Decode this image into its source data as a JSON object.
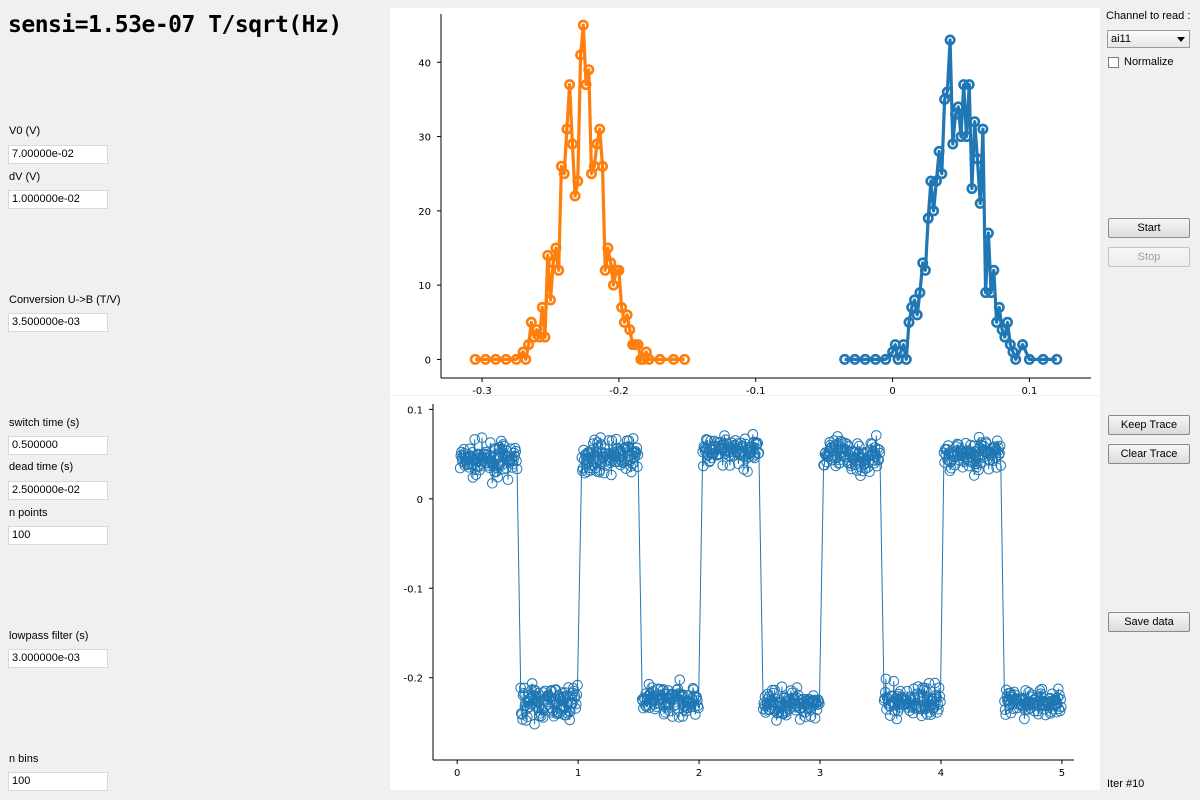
{
  "header": {
    "title": "sensi=1.53e-07 T/sqrt(Hz)"
  },
  "params": {
    "v0": {
      "label": "V0 (V)",
      "value": "7.00000e-02"
    },
    "dv": {
      "label": "dV (V)",
      "value": "1.000000e-02"
    },
    "conversion": {
      "label": "Conversion U->B (T/V)",
      "value": "3.500000e-03"
    },
    "switch_time": {
      "label": "switch time (s)",
      "value": "0.500000"
    },
    "dead_time": {
      "label": "dead time (s)",
      "value": "2.500000e-02"
    },
    "n_points": {
      "label": "n points",
      "value": "100"
    },
    "lowpass": {
      "label": "lowpass filter (s)",
      "value": "3.000000e-03"
    },
    "n_bins": {
      "label": "n bins",
      "value": "100"
    }
  },
  "controls": {
    "channel_label": "Channel to read :",
    "channel_value": "ai11",
    "normalize_label": "Normalize",
    "normalize_checked": false,
    "start_label": "Start",
    "stop_label": "Stop",
    "stop_enabled": false,
    "keep_trace_label": "Keep Trace",
    "clear_trace_label": "Clear Trace",
    "save_data_label": "Save data"
  },
  "status": {
    "iteration": "Iter #10"
  },
  "chart_data": [
    {
      "type": "line",
      "name": "histogram",
      "markers": "circle",
      "xlim": [
        -0.33,
        0.145
      ],
      "ylim": [
        -2.5,
        46.5
      ],
      "x_ticks": [
        -0.3,
        -0.2,
        -0.1,
        0,
        0.1
      ],
      "x_tick_labels": [
        "-0.3",
        "-0.2",
        "-0.1",
        "0",
        "0.1"
      ],
      "y_ticks": [
        0,
        10,
        20,
        30,
        40
      ],
      "y_tick_labels": [
        "0",
        "10",
        "20",
        "30",
        "40"
      ],
      "series": [
        {
          "color": "#ff7f0e",
          "x": [
            -0.305,
            -0.2975,
            -0.29,
            -0.2825,
            -0.275,
            -0.27,
            -0.268,
            -0.266,
            -0.264,
            -0.262,
            -0.26,
            -0.258,
            -0.256,
            -0.254,
            -0.252,
            -0.25,
            -0.248,
            -0.246,
            -0.244,
            -0.242,
            -0.24,
            -0.238,
            -0.236,
            -0.234,
            -0.232,
            -0.23,
            -0.228,
            -0.226,
            -0.224,
            -0.222,
            -0.22,
            -0.218,
            -0.216,
            -0.214,
            -0.212,
            -0.21,
            -0.208,
            -0.206,
            -0.204,
            -0.202,
            -0.2,
            -0.198,
            -0.196,
            -0.194,
            -0.192,
            -0.19,
            -0.188,
            -0.186,
            -0.184,
            -0.182,
            -0.18,
            -0.178,
            -0.17,
            -0.16,
            -0.152
          ],
          "y": [
            0,
            0,
            0,
            0,
            0,
            1,
            0,
            2,
            5,
            3,
            4,
            3,
            7,
            3,
            14,
            8,
            13,
            15,
            12,
            26,
            25,
            31,
            37,
            29,
            22,
            24,
            41,
            45,
            37,
            39,
            25,
            26,
            29,
            31,
            26,
            12,
            15,
            13,
            10,
            12,
            12,
            7,
            5,
            6,
            4,
            2,
            2,
            2,
            0,
            0,
            1,
            0,
            0,
            0,
            0
          ]
        },
        {
          "color": "#1f77b4",
          "x": [
            -0.035,
            -0.0275,
            -0.02,
            -0.0125,
            -0.005,
            0,
            0.002,
            0.004,
            0.006,
            0.008,
            0.01,
            0.012,
            0.014,
            0.016,
            0.018,
            0.02,
            0.022,
            0.024,
            0.026,
            0.028,
            0.03,
            0.032,
            0.034,
            0.036,
            0.038,
            0.04,
            0.042,
            0.044,
            0.046,
            0.048,
            0.05,
            0.052,
            0.054,
            0.056,
            0.058,
            0.06,
            0.062,
            0.064,
            0.066,
            0.068,
            0.07,
            0.072,
            0.074,
            0.076,
            0.078,
            0.08,
            0.082,
            0.084,
            0.086,
            0.088,
            0.09,
            0.095,
            0.1,
            0.11,
            0.12
          ],
          "y": [
            0,
            0,
            0,
            0,
            0,
            1,
            2,
            0,
            1,
            2,
            0,
            5,
            7,
            8,
            6,
            9,
            13,
            12,
            19,
            24,
            20,
            24,
            28,
            25,
            35,
            36,
            43,
            29,
            33,
            34,
            30,
            37,
            30,
            37,
            23,
            32,
            27,
            21,
            31,
            9,
            17,
            9,
            12,
            5,
            7,
            4,
            3,
            5,
            2,
            1,
            0,
            2,
            0,
            0,
            0
          ]
        }
      ]
    },
    {
      "type": "line",
      "name": "time-trace",
      "markers": "circle",
      "color": "#1f77b4",
      "xlim": [
        -0.2,
        5.1
      ],
      "ylim": [
        -0.292,
        0.106
      ],
      "x_ticks": [
        0,
        1,
        2,
        3,
        4,
        5
      ],
      "x_tick_labels": [
        "0",
        "1",
        "2",
        "3",
        "4",
        "5"
      ],
      "y_ticks": [
        0.1,
        0,
        -0.1,
        -0.2
      ],
      "y_tick_labels": [
        "0.1",
        "0",
        "-0.1",
        "-0.2"
      ],
      "segments": [
        {
          "x_start": 0.0,
          "x_end": 0.5,
          "y_mean": 0.043,
          "y_spread": 0.016
        },
        {
          "x_start": 0.5,
          "x_end": 1.0,
          "y_mean": -0.228,
          "y_spread": 0.017
        },
        {
          "x_start": 1.0,
          "x_end": 1.5,
          "y_mean": 0.048,
          "y_spread": 0.016
        },
        {
          "x_start": 1.5,
          "x_end": 2.0,
          "y_mean": -0.225,
          "y_spread": 0.015
        },
        {
          "x_start": 2.0,
          "x_end": 2.5,
          "y_mean": 0.052,
          "y_spread": 0.016
        },
        {
          "x_start": 2.5,
          "x_end": 3.0,
          "y_mean": -0.228,
          "y_spread": 0.015
        },
        {
          "x_start": 3.0,
          "x_end": 3.5,
          "y_mean": 0.048,
          "y_spread": 0.018
        },
        {
          "x_start": 3.5,
          "x_end": 4.0,
          "y_mean": -0.226,
          "y_spread": 0.016
        },
        {
          "x_start": 4.0,
          "x_end": 4.5,
          "y_mean": 0.05,
          "y_spread": 0.016
        },
        {
          "x_start": 4.5,
          "x_end": 5.0,
          "y_mean": -0.228,
          "y_spread": 0.014
        }
      ]
    }
  ]
}
